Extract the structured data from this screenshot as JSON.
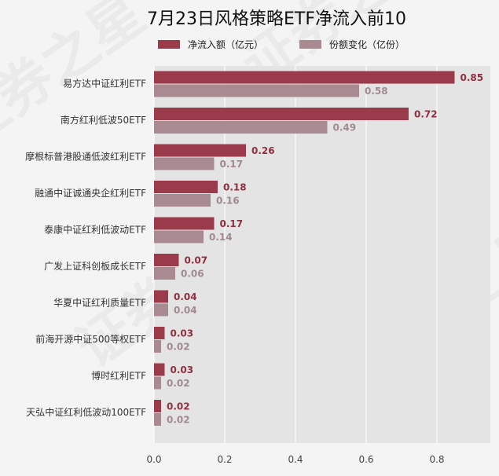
{
  "chart_data": {
    "type": "bar",
    "orientation": "horizontal",
    "title": "7月23日风格策略ETF净流入前10",
    "categories": [
      "易方达中证红利ETF",
      "南方红利低波50ETF",
      "摩根标普港股通低波红利ETF",
      "融通中证诚通央企红利ETF",
      "泰康中证红利低波动ETF",
      "广发上证科创板成长ETF",
      "华夏中证红利质量ETF",
      "前海开源中证500等权ETF",
      "博时红利ETF",
      "天弘中证红利低波动100ETF"
    ],
    "series": [
      {
        "name": "净流入额（亿元）",
        "color": "#9b3a4a",
        "label_color": "#8f2f40",
        "values": [
          0.85,
          0.72,
          0.26,
          0.18,
          0.17,
          0.07,
          0.04,
          0.03,
          0.03,
          0.02
        ]
      },
      {
        "name": "份额变化（亿份）",
        "color": "#a98a91",
        "label_color": "#a08a90",
        "values": [
          0.58,
          0.49,
          0.17,
          0.16,
          0.14,
          0.06,
          0.04,
          0.02,
          0.02,
          0.02
        ]
      }
    ],
    "value_labels": [
      [
        "0.85",
        "0.72",
        "0.26",
        "0.18",
        "0.17",
        "0.07",
        "0.04",
        "0.03",
        "0.03",
        "0.02"
      ],
      [
        "0.58",
        "0.49",
        "0.17",
        "0.16",
        "0.14",
        "0.06",
        "0.04",
        "0.02",
        "0.02",
        "0.02"
      ]
    ],
    "xlim": [
      0,
      0.95
    ],
    "xticks": [
      0,
      0.2,
      0.4,
      0.6,
      0.8
    ],
    "xtick_labels": [
      "0.0",
      "0.2",
      "0.4",
      "0.6",
      "0.8"
    ],
    "grid": true,
    "legend_position": "top",
    "plot_background": "#e4e4e4",
    "grid_color": "#ffffff"
  },
  "watermark": "证券之星"
}
